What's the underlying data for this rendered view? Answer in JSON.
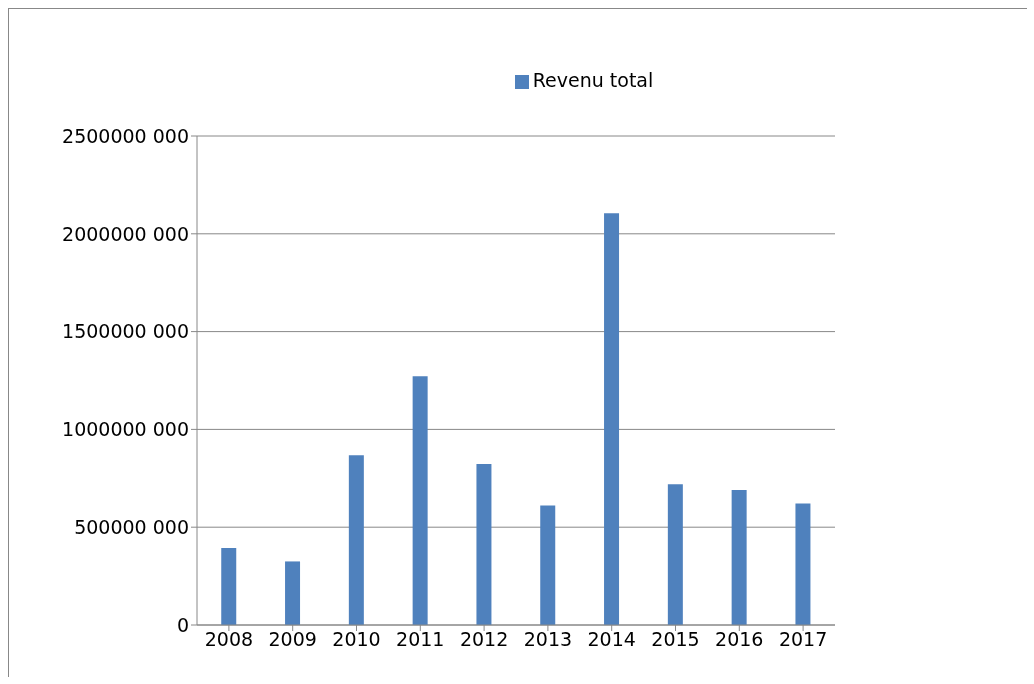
{
  "chart_data": {
    "type": "bar",
    "categories": [
      "2008",
      "2009",
      "2010",
      "2011",
      "2012",
      "2013",
      "2014",
      "2015",
      "2016",
      "2017"
    ],
    "series": [
      {
        "name": "Revenu total",
        "color": "#4f81bd",
        "values": [
          394000000,
          325000000,
          868000000,
          1272000000,
          823000000,
          611000000,
          2105000000,
          720000000,
          690000000,
          621000000
        ]
      }
    ],
    "ylim": [
      0,
      2500000000
    ],
    "yticks": [
      0,
      {
        "value": 500000000,
        "label": "500000 000"
      },
      {
        "value": 1000000000,
        "label": "1000000 000"
      },
      {
        "value": 1500000000,
        "label": "1500000 000"
      },
      {
        "value": 2000000000,
        "label": "2000000 000"
      },
      {
        "value": 2500000000,
        "label": "2500000 000"
      }
    ],
    "grid": "y",
    "legend": "top"
  }
}
